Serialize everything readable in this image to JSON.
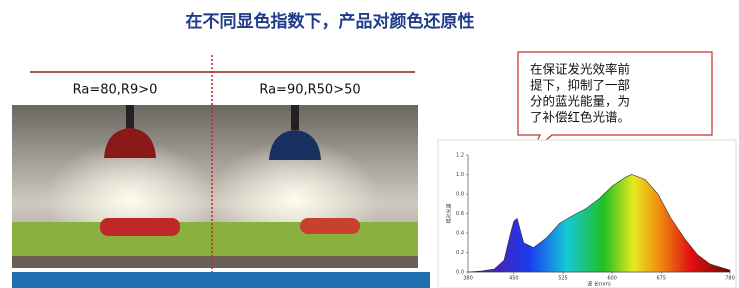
{
  "title": "在不同显色指数下，产品对颜色还原性",
  "labels": [
    "Ra=80,R9>0",
    "Ra=90,R50>50"
  ],
  "callout": {
    "lines": [
      "在保证发光效率前",
      "提下，抑制了一部",
      "分的蓝光能量，为",
      "了补偿红色光谱。"
    ]
  },
  "chart_data": {
    "type": "line",
    "x": [
      380,
      400,
      420,
      435,
      445,
      450,
      455,
      465,
      480,
      500,
      520,
      540,
      560,
      580,
      600,
      620,
      630,
      650,
      670,
      690,
      710,
      730,
      750,
      780
    ],
    "values": [
      0,
      0.01,
      0.03,
      0.12,
      0.4,
      0.52,
      0.55,
      0.3,
      0.25,
      0.35,
      0.5,
      0.58,
      0.65,
      0.75,
      0.88,
      0.97,
      1.0,
      0.95,
      0.8,
      0.55,
      0.35,
      0.18,
      0.08,
      0.02
    ],
    "xlim": [
      380,
      780
    ],
    "ylim": [
      0,
      1.2
    ],
    "xticks": [
      380,
      450,
      525,
      600,
      675,
      780
    ],
    "yticks": [
      {
        "value": 0,
        "label": "0.0"
      },
      0.2,
      0.4,
      0.6,
      0.8,
      {
        "value": 1,
        "label": "1.0"
      },
      1.2
    ],
    "x_label": "波 长(nm)",
    "y_label": "相对光谱"
  }
}
